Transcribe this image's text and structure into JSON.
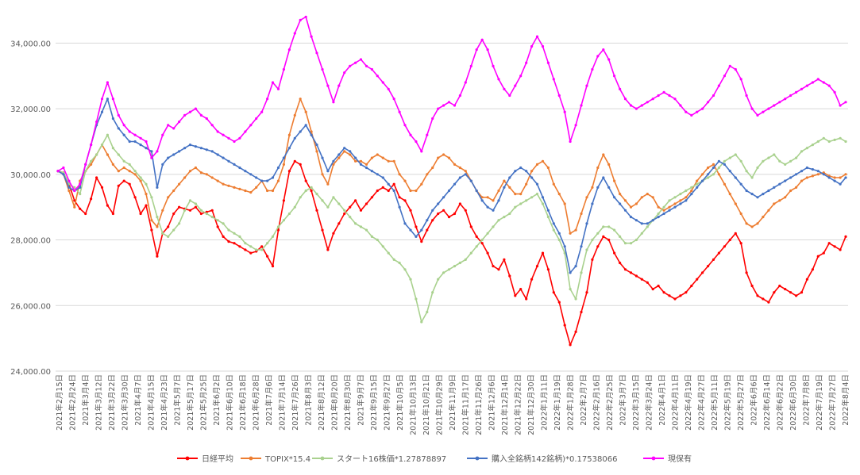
{
  "chart_data": {
    "type": "line",
    "title": "",
    "xlabel": "",
    "ylabel": "",
    "ylim": [
      24000,
      35000
    ],
    "yticks": [
      24000,
      26000,
      28000,
      30000,
      32000,
      34000
    ],
    "ytick_labels": [
      "24,000.00",
      "26,000.00",
      "28,000.00",
      "30,000.00",
      "32,000.00",
      "34,000.00"
    ],
    "grid": "horizontal",
    "legend_position": "bottom",
    "x_tick_labels": [
      "2021年2月15日",
      "2021年2月24日",
      "2021年3月4日",
      "2021年3月12日",
      "2021年3月22日",
      "2021年3月30日",
      "2021年4月7日",
      "2021年4月15日",
      "2021年4月23日",
      "2021年5月7日",
      "2021年5月17日",
      "2021年5月25日",
      "2021年6月2日",
      "2021年6月10日",
      "2021年6月18日",
      "2021年6月28日",
      "2021年7月6日",
      "2021年7月14日",
      "2021年7月26日",
      "2021年8月3日",
      "2021年8月12日",
      "2021年8月20日",
      "2021年8月30日",
      "2021年9月7日",
      "2021年9月15日",
      "2021年9月27日",
      "2021年10月5日",
      "2021年10月13日",
      "2021年10月21日",
      "2021年10月29日",
      "2021年11月9日",
      "2021年11月17日",
      "2021年11月26日",
      "2021年12月6日",
      "2021年12月14日",
      "2021年12月22日",
      "2021年12月30日",
      "2022年1月11日",
      "2022年1月19日",
      "2022年1月28日",
      "2022年2月7日",
      "2022年2月16日",
      "2022年2月25日",
      "2022年3月7日",
      "2022年3月15日",
      "2022年3月24日",
      "2022年4月1日",
      "2022年4月11日",
      "2022年4月19日",
      "2022年4月27日",
      "2022年5月11日",
      "2022年5月19日",
      "2022年5月27日",
      "2022年6月6日",
      "2022年6月14日",
      "2022年6月22日",
      "2022年6月30日",
      "2022年7月8日",
      "2022年7月19日",
      "2022年7月27日",
      "2022年8月4日"
    ],
    "series": [
      {
        "name": "日経平均",
        "color": "#ff0000",
        "values": [
          30100,
          30050,
          29700,
          29200,
          28950,
          28800,
          29250,
          29900,
          29600,
          29050,
          28800,
          29650,
          29800,
          29700,
          29300,
          28800,
          29050,
          28300,
          27500,
          28200,
          28400,
          28800,
          29000,
          28950,
          28900,
          29000,
          28800,
          28850,
          28900,
          28400,
          28100,
          27950,
          27900,
          27800,
          27700,
          27600,
          27650,
          27800,
          27500,
          27200,
          28300,
          29200,
          30100,
          30400,
          30300,
          29800,
          29500,
          28900,
          28300,
          27700,
          28200,
          28500,
          28800,
          29000,
          29200,
          28900,
          29100,
          29300,
          29500,
          29600,
          29500,
          29700,
          29300,
          29200,
          28900,
          28400,
          27950,
          28300,
          28600,
          28800,
          28900,
          28700,
          28800,
          29100,
          28900,
          28400,
          28100,
          27900,
          27600,
          27200,
          27100,
          27400,
          26900,
          26300,
          26500,
          26200,
          26800,
          27200,
          27600,
          27100,
          26400,
          26100,
          25400,
          24800,
          25200,
          25800,
          26400,
          27400,
          27800,
          28100,
          28000,
          27600,
          27300,
          27100,
          27000,
          26900,
          26800,
          26700,
          26500,
          26600,
          26400,
          26300,
          26200,
          26300,
          26400,
          26600,
          26800,
          27000,
          27200,
          27400,
          27600,
          27800,
          28000,
          28200,
          27900,
          27000,
          26600,
          26300,
          26200,
          26100,
          26400,
          26600,
          26500,
          26400,
          26300,
          26400,
          26800,
          27100,
          27500,
          27600,
          27900,
          27800,
          27700,
          28100
        ]
      },
      {
        "name": "TOPIX*15.4",
        "color": "#ed7d31",
        "values": [
          30100,
          30000,
          29500,
          29000,
          29800,
          30100,
          30300,
          30600,
          30900,
          30600,
          30300,
          30100,
          30200,
          30100,
          30000,
          29800,
          29400,
          28600,
          28400,
          28900,
          29300,
          29500,
          29700,
          29900,
          30100,
          30200,
          30050,
          30000,
          29900,
          29800,
          29700,
          29650,
          29600,
          29550,
          29500,
          29450,
          29600,
          29800,
          29500,
          29500,
          29800,
          30300,
          31200,
          31800,
          32300,
          31900,
          31300,
          30700,
          30000,
          29700,
          30300,
          30500,
          30700,
          30600,
          30400,
          30400,
          30300,
          30500,
          30600,
          30500,
          30400,
          30400,
          30000,
          29800,
          29500,
          29500,
          29700,
          30000,
          30200,
          30500,
          30600,
          30500,
          30300,
          30200,
          30100,
          29800,
          29500,
          29300,
          29300,
          29200,
          29500,
          29800,
          29600,
          29400,
          29400,
          29700,
          30100,
          30300,
          30400,
          30200,
          29700,
          29400,
          29100,
          28200,
          28300,
          28800,
          29300,
          29600,
          30200,
          30600,
          30300,
          29800,
          29400,
          29200,
          29000,
          29100,
          29300,
          29400,
          29300,
          29000,
          28900,
          29000,
          29100,
          29200,
          29300,
          29500,
          29800,
          30000,
          30200,
          30300,
          30000,
          29700,
          29400,
          29100,
          28800,
          28500,
          28400,
          28500,
          28700,
          28900,
          29100,
          29200,
          29300,
          29500,
          29600,
          29800,
          29900,
          29950,
          30000,
          30050,
          29950,
          29900,
          29900,
          30000
        ]
      },
      {
        "name": "スタート16株価*1.27878897",
        "color": "#a9d18e",
        "values": [
          30100,
          30050,
          29700,
          29600,
          29400,
          30100,
          30400,
          30600,
          30900,
          31200,
          30800,
          30600,
          30400,
          30300,
          30100,
          29900,
          29700,
          29300,
          28700,
          28200,
          28100,
          28300,
          28500,
          28900,
          29200,
          29100,
          28900,
          28800,
          28700,
          28600,
          28500,
          28300,
          28200,
          28100,
          27900,
          27800,
          27700,
          27700,
          27900,
          28100,
          28400,
          28600,
          28800,
          29000,
          29300,
          29500,
          29600,
          29400,
          29200,
          29000,
          29300,
          29100,
          28900,
          28700,
          28500,
          28400,
          28300,
          28100,
          28000,
          27800,
          27600,
          27400,
          27300,
          27100,
          26800,
          26200,
          25500,
          25800,
          26400,
          26800,
          27000,
          27100,
          27200,
          27300,
          27400,
          27600,
          27800,
          28000,
          28200,
          28400,
          28600,
          28700,
          28800,
          29000,
          29100,
          29200,
          29300,
          29400,
          29100,
          28700,
          28300,
          28000,
          27600,
          26500,
          26200,
          27000,
          27700,
          28000,
          28200,
          28400,
          28400,
          28300,
          28100,
          27900,
          27900,
          28000,
          28200,
          28400,
          28600,
          28800,
          29000,
          29200,
          29300,
          29400,
          29500,
          29600,
          29700,
          29800,
          29900,
          30000,
          30200,
          30400,
          30500,
          30600,
          30400,
          30100,
          29900,
          30200,
          30400,
          30500,
          30600,
          30400,
          30300,
          30400,
          30500,
          30700,
          30800,
          30900,
          31000,
          31100,
          31000,
          31050,
          31100,
          31000
        ]
      },
      {
        "name": "購入全銘柄142銘柄)*0.17538066",
        "color": "#4472c4",
        "values": [
          30100,
          30000,
          29600,
          29500,
          29600,
          30300,
          30900,
          31500,
          31900,
          32300,
          31700,
          31400,
          31200,
          31000,
          31000,
          30900,
          30800,
          30700,
          29600,
          30300,
          30500,
          30600,
          30700,
          30800,
          30900,
          30850,
          30800,
          30750,
          30700,
          30600,
          30500,
          30400,
          30300,
          30200,
          30100,
          30000,
          29900,
          29800,
          29800,
          29900,
          30200,
          30500,
          30800,
          31100,
          31300,
          31500,
          31200,
          30900,
          30500,
          30100,
          30400,
          30600,
          30800,
          30700,
          30500,
          30300,
          30200,
          30100,
          30000,
          29900,
          29700,
          29500,
          29000,
          28500,
          28300,
          28100,
          28300,
          28600,
          28900,
          29100,
          29300,
          29500,
          29700,
          29900,
          30000,
          29800,
          29500,
          29200,
          29000,
          28900,
          29200,
          29600,
          29900,
          30100,
          30200,
          30100,
          29900,
          29700,
          29300,
          28900,
          28500,
          28200,
          27800,
          27000,
          27200,
          27800,
          28500,
          29100,
          29600,
          29900,
          29600,
          29300,
          29100,
          28900,
          28700,
          28600,
          28500,
          28500,
          28600,
          28700,
          28800,
          28900,
          29000,
          29100,
          29200,
          29400,
          29600,
          29800,
          30000,
          30200,
          30400,
          30300,
          30100,
          29900,
          29700,
          29500,
          29400,
          29300,
          29400,
          29500,
          29600,
          29700,
          29800,
          29900,
          30000,
          30100,
          30200,
          30150,
          30100,
          30000,
          29900,
          29800,
          29700,
          29900
        ]
      },
      {
        "name": "現保有",
        "color": "#ff00ff",
        "values": [
          30100,
          30200,
          29800,
          29500,
          29700,
          30300,
          30900,
          31600,
          32300,
          32800,
          32300,
          31800,
          31500,
          31300,
          31200,
          31100,
          31000,
          30500,
          30700,
          31200,
          31500,
          31400,
          31600,
          31800,
          31900,
          32000,
          31800,
          31700,
          31500,
          31300,
          31200,
          31100,
          31000,
          31100,
          31300,
          31500,
          31700,
          31900,
          32300,
          32800,
          32600,
          33200,
          33800,
          34300,
          34700,
          34800,
          34200,
          33700,
          33200,
          32700,
          32200,
          32700,
          33100,
          33300,
          33400,
          33500,
          33300,
          33200,
          33000,
          32800,
          32600,
          32300,
          31900,
          31500,
          31200,
          31000,
          30700,
          31200,
          31700,
          32000,
          32100,
          32200,
          32100,
          32400,
          32800,
          33300,
          33800,
          34100,
          33800,
          33300,
          32900,
          32600,
          32400,
          32700,
          33000,
          33400,
          33900,
          34200,
          33900,
          33400,
          32900,
          32400,
          31900,
          31000,
          31500,
          32100,
          32700,
          33200,
          33600,
          33800,
          33500,
          33000,
          32600,
          32300,
          32100,
          32000,
          32100,
          32200,
          32300,
          32400,
          32500,
          32400,
          32300,
          32100,
          31900,
          31800,
          31900,
          32000,
          32200,
          32400,
          32700,
          33000,
          33300,
          33200,
          32900,
          32400,
          32000,
          31800,
          31900,
          32000,
          32100,
          32200,
          32300,
          32400,
          32500,
          32600,
          32700,
          32800,
          32900,
          32800,
          32700,
          32500,
          32100,
          32200
        ]
      }
    ]
  }
}
